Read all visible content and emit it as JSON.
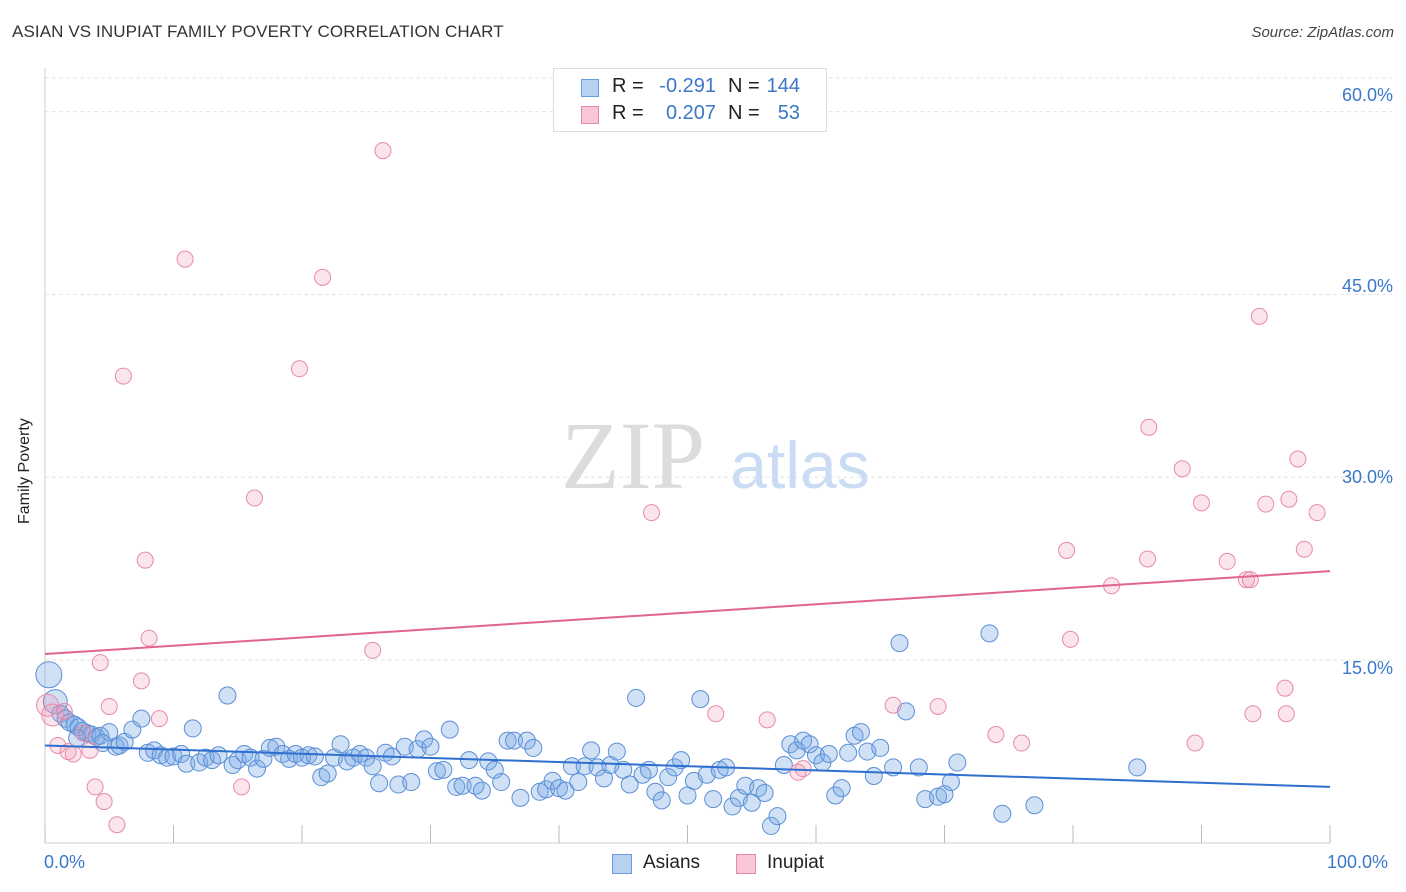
{
  "title": "ASIAN VS INUPIAT FAMILY POVERTY CORRELATION CHART",
  "source": "Source: ZipAtlas.com",
  "watermark": {
    "zip": "ZIP",
    "atlas": "atlas"
  },
  "legend": {
    "r_label": "R =",
    "n_label": "N =",
    "rows": [
      {
        "series": "Asians",
        "r": "-0.291",
        "n": "144",
        "fill": "#a9c9ef",
        "stroke": "#5b8fd6"
      },
      {
        "series": "Inupiat",
        "r": "0.207",
        "n": "53",
        "fill": "#f5b8cb",
        "stroke": "#e57aa0"
      }
    ]
  },
  "bottom_legend": [
    "Asians",
    "Inupiat"
  ],
  "colors": {
    "asian_fill": "rgba(120,170,230,0.35)",
    "asian_stroke": "#5b8fd6",
    "asian_line": "#2f6fce",
    "inupiat_fill": "rgba(240,150,180,0.25)",
    "inupiat_stroke": "#e889a8",
    "inupiat_line": "#e0658f",
    "tick_label": "#3a78c9",
    "grid": "#e3e3e3"
  },
  "chart_data": {
    "type": "scatter",
    "title": "ASIAN VS INUPIAT FAMILY POVERTY CORRELATION CHART",
    "xlabel": "",
    "ylabel": "Family Poverty",
    "xlim": [
      0,
      100
    ],
    "ylim": [
      0,
      63
    ],
    "y_ticks": [
      15,
      30,
      45,
      60
    ],
    "y_tick_labels": [
      "15.0%",
      "30.0%",
      "45.0%",
      "60.0%"
    ],
    "x_tick_labels": [
      "0.0%",
      "100.0%"
    ],
    "grid": true,
    "series": [
      {
        "name": "Asians",
        "trend": {
          "x": [
            0,
            100
          ],
          "y": [
            8.0,
            4.6
          ]
        },
        "points": [
          [
            0.3,
            13.8
          ],
          [
            0.8,
            11.6
          ],
          [
            1.2,
            10.6
          ],
          [
            1.6,
            10.2
          ],
          [
            1.9,
            9.9
          ],
          [
            2.3,
            9.7
          ],
          [
            2.6,
            9.5
          ],
          [
            2.9,
            9.2
          ],
          [
            3.3,
            9.0
          ],
          [
            3.6,
            8.9
          ],
          [
            4.0,
            8.7
          ],
          [
            4.3,
            8.8
          ],
          [
            5.0,
            9.1
          ],
          [
            5.5,
            7.9
          ],
          [
            5.8,
            8.0
          ],
          [
            6.2,
            8.3
          ],
          [
            6.8,
            9.3
          ],
          [
            7.5,
            10.2
          ],
          [
            8.0,
            7.4
          ],
          [
            8.5,
            7.6
          ],
          [
            9.0,
            7.2
          ],
          [
            9.5,
            7.0
          ],
          [
            10.0,
            7.1
          ],
          [
            10.6,
            7.3
          ],
          [
            11.0,
            6.5
          ],
          [
            11.5,
            9.4
          ],
          [
            12.0,
            6.6
          ],
          [
            12.5,
            7.0
          ],
          [
            13.0,
            6.8
          ],
          [
            13.5,
            7.2
          ],
          [
            14.2,
            12.1
          ],
          [
            14.6,
            6.4
          ],
          [
            15.0,
            6.8
          ],
          [
            15.5,
            7.3
          ],
          [
            16.0,
            7.0
          ],
          [
            16.5,
            6.1
          ],
          [
            17.0,
            6.9
          ],
          [
            17.5,
            7.8
          ],
          [
            18.0,
            7.9
          ],
          [
            18.5,
            7.3
          ],
          [
            19.0,
            6.9
          ],
          [
            19.5,
            7.3
          ],
          [
            20.0,
            7.0
          ],
          [
            20.5,
            7.2
          ],
          [
            21.0,
            7.1
          ],
          [
            21.5,
            5.4
          ],
          [
            22.0,
            5.7
          ],
          [
            22.5,
            7.0
          ],
          [
            23.0,
            8.1
          ],
          [
            23.5,
            6.7
          ],
          [
            24.0,
            7.0
          ],
          [
            24.5,
            7.3
          ],
          [
            25.0,
            7.0
          ],
          [
            25.5,
            6.3
          ],
          [
            26.0,
            4.9
          ],
          [
            26.5,
            7.4
          ],
          [
            27.0,
            7.1
          ],
          [
            27.5,
            4.8
          ],
          [
            28.0,
            7.9
          ],
          [
            28.5,
            5.0
          ],
          [
            29.0,
            7.7
          ],
          [
            29.5,
            8.5
          ],
          [
            30.0,
            7.9
          ],
          [
            30.5,
            5.9
          ],
          [
            31.0,
            6.0
          ],
          [
            31.5,
            9.3
          ],
          [
            32.0,
            4.6
          ],
          [
            32.5,
            4.7
          ],
          [
            33.0,
            6.8
          ],
          [
            33.5,
            4.7
          ],
          [
            34.0,
            4.3
          ],
          [
            34.5,
            6.7
          ],
          [
            35.0,
            6.0
          ],
          [
            35.5,
            5.0
          ],
          [
            36.0,
            8.4
          ],
          [
            36.5,
            8.4
          ],
          [
            37.0,
            3.7
          ],
          [
            37.5,
            8.4
          ],
          [
            38.0,
            7.8
          ],
          [
            38.5,
            4.2
          ],
          [
            39.0,
            4.4
          ],
          [
            39.5,
            5.1
          ],
          [
            40.0,
            4.5
          ],
          [
            40.5,
            4.3
          ],
          [
            41.0,
            6.3
          ],
          [
            41.5,
            5.0
          ],
          [
            42.0,
            6.3
          ],
          [
            42.5,
            7.6
          ],
          [
            43.0,
            6.2
          ],
          [
            43.5,
            5.3
          ],
          [
            44.0,
            6.4
          ],
          [
            44.5,
            7.5
          ],
          [
            45.0,
            6.0
          ],
          [
            45.5,
            4.8
          ],
          [
            46.0,
            11.9
          ],
          [
            46.5,
            5.6
          ],
          [
            47.0,
            6.0
          ],
          [
            47.5,
            4.2
          ],
          [
            48.0,
            3.5
          ],
          [
            48.5,
            5.4
          ],
          [
            49.0,
            6.2
          ],
          [
            49.5,
            6.8
          ],
          [
            50.0,
            3.9
          ],
          [
            50.5,
            5.1
          ],
          [
            51.0,
            11.8
          ],
          [
            51.5,
            5.6
          ],
          [
            52.0,
            3.6
          ],
          [
            52.5,
            6.0
          ],
          [
            53.0,
            6.2
          ],
          [
            53.5,
            3.0
          ],
          [
            54.0,
            3.7
          ],
          [
            54.5,
            4.7
          ],
          [
            55.0,
            3.3
          ],
          [
            55.5,
            4.5
          ],
          [
            56.0,
            4.1
          ],
          [
            56.5,
            1.4
          ],
          [
            57.0,
            2.2
          ],
          [
            57.5,
            6.4
          ],
          [
            58.0,
            8.1
          ],
          [
            58.5,
            7.6
          ],
          [
            59.0,
            8.4
          ],
          [
            59.5,
            8.1
          ],
          [
            60.0,
            7.2
          ],
          [
            60.5,
            6.6
          ],
          [
            61.0,
            7.3
          ],
          [
            61.5,
            3.9
          ],
          [
            62.0,
            4.5
          ],
          [
            62.5,
            7.4
          ],
          [
            63.0,
            8.8
          ],
          [
            63.5,
            9.1
          ],
          [
            64.0,
            7.5
          ],
          [
            64.5,
            5.5
          ],
          [
            65.0,
            7.8
          ],
          [
            66.0,
            6.2
          ],
          [
            66.5,
            16.4
          ],
          [
            67.0,
            10.8
          ],
          [
            68.0,
            6.2
          ],
          [
            68.5,
            3.6
          ],
          [
            69.5,
            3.8
          ],
          [
            70.0,
            4.0
          ],
          [
            70.5,
            5.0
          ],
          [
            71.0,
            6.6
          ],
          [
            73.5,
            17.2
          ],
          [
            74.5,
            2.4
          ],
          [
            77.0,
            3.1
          ],
          [
            85.0,
            6.2
          ],
          [
            2.5,
            8.6
          ],
          [
            4.5,
            8.2
          ]
        ]
      },
      {
        "name": "Inupiat",
        "trend": {
          "x": [
            0,
            100
          ],
          "y": [
            15.5,
            22.3
          ]
        },
        "points": [
          [
            0.2,
            11.3
          ],
          [
            0.6,
            10.5
          ],
          [
            1.0,
            8.0
          ],
          [
            1.5,
            10.8
          ],
          [
            1.8,
            7.5
          ],
          [
            2.2,
            7.3
          ],
          [
            3.0,
            9.0
          ],
          [
            3.5,
            7.6
          ],
          [
            3.9,
            4.6
          ],
          [
            4.3,
            14.8
          ],
          [
            4.6,
            3.4
          ],
          [
            5.0,
            11.2
          ],
          [
            5.6,
            1.5
          ],
          [
            6.1,
            38.3
          ],
          [
            7.5,
            13.3
          ],
          [
            7.8,
            23.2
          ],
          [
            8.1,
            16.8
          ],
          [
            8.9,
            10.2
          ],
          [
            10.9,
            47.9
          ],
          [
            15.3,
            4.6
          ],
          [
            16.3,
            28.3
          ],
          [
            19.8,
            38.9
          ],
          [
            21.6,
            46.4
          ],
          [
            25.5,
            15.8
          ],
          [
            26.3,
            56.8
          ],
          [
            47.2,
            27.1
          ],
          [
            52.2,
            10.6
          ],
          [
            56.2,
            10.1
          ],
          [
            58.6,
            5.8
          ],
          [
            59.0,
            6.1
          ],
          [
            66.0,
            11.3
          ],
          [
            69.5,
            11.2
          ],
          [
            74.0,
            8.9
          ],
          [
            76.0,
            8.2
          ],
          [
            79.5,
            24.0
          ],
          [
            79.8,
            16.7
          ],
          [
            83.0,
            21.1
          ],
          [
            85.8,
            23.3
          ],
          [
            85.9,
            34.1
          ],
          [
            88.5,
            30.7
          ],
          [
            89.5,
            8.2
          ],
          [
            90.0,
            27.9
          ],
          [
            92.0,
            23.1
          ],
          [
            93.5,
            21.6
          ],
          [
            93.8,
            21.6
          ],
          [
            94.0,
            10.6
          ],
          [
            94.5,
            43.2
          ],
          [
            95.0,
            27.8
          ],
          [
            96.5,
            12.7
          ],
          [
            96.6,
            10.6
          ],
          [
            96.8,
            28.2
          ],
          [
            97.5,
            31.5
          ],
          [
            98.0,
            24.1
          ],
          [
            99.0,
            27.1
          ]
        ]
      }
    ]
  }
}
